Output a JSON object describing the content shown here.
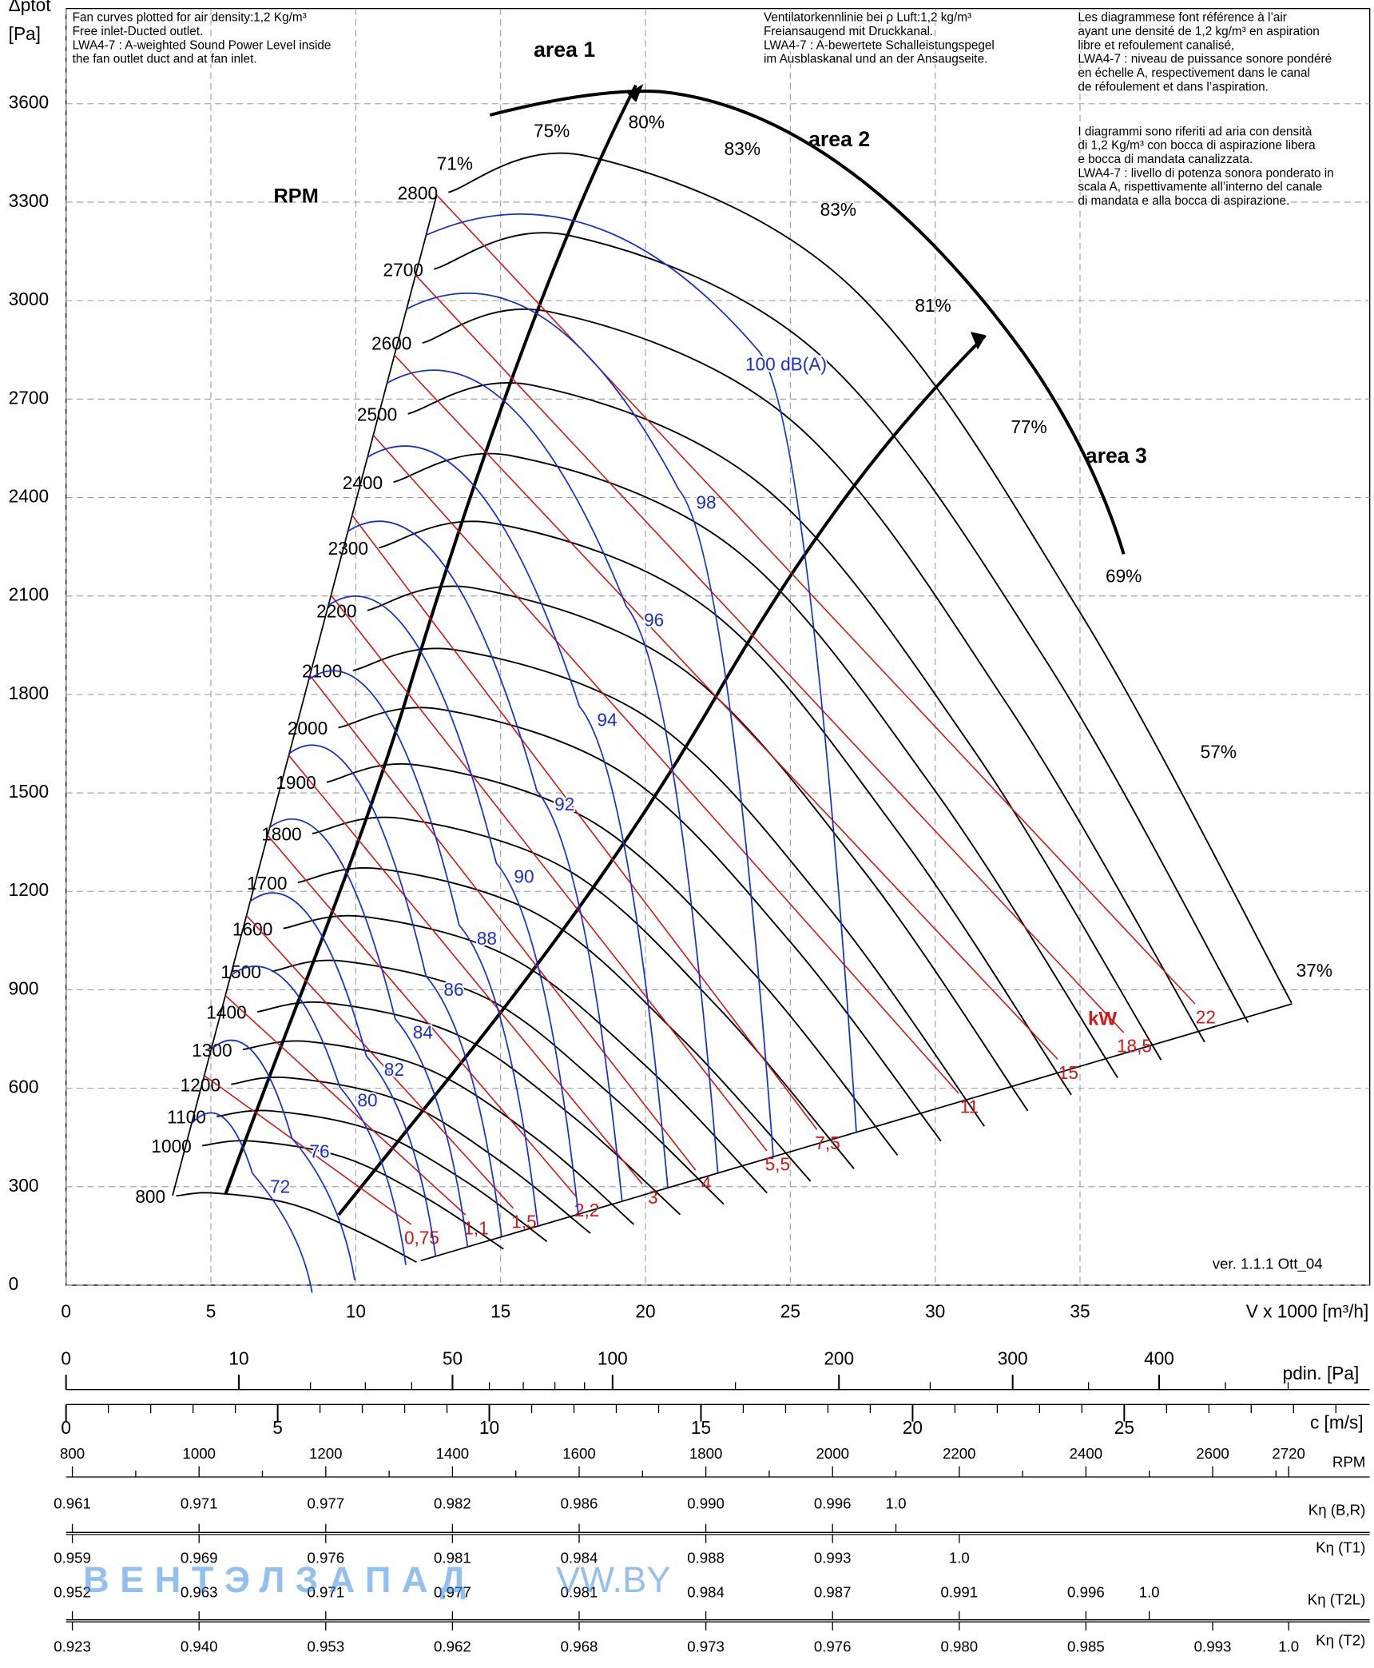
{
  "chart_data": {
    "type": "fan-curve",
    "y_label": "Δptot",
    "y_unit": "[Pa]",
    "x_label": "V x 1000 [m³/h]",
    "xlim": [
      0,
      45
    ],
    "xticks": [
      0,
      5,
      10,
      15,
      20,
      25,
      30,
      35
    ],
    "ylim": [
      0,
      3890
    ],
    "yticks": [
      0,
      300,
      600,
      900,
      1200,
      1500,
      1800,
      2100,
      2400,
      2700,
      3000,
      3300,
      3600
    ],
    "grid": true,
    "rpm_title": "RPM",
    "series": [
      {
        "name": "800",
        "color": "#000000",
        "x": [
          3.8,
          5.1,
          7.7,
          10.0,
          12.1
        ],
        "values": [
          272,
          281,
          249,
          167,
          70
        ]
      },
      {
        "name": "1000",
        "color": "#000000",
        "x": [
          4.7,
          6.4,
          9.6,
          12.5,
          15.1
        ],
        "values": [
          425,
          439,
          389,
          262,
          110
        ]
      },
      {
        "name": "1100",
        "color": "#000000",
        "x": [
          5.2,
          7.1,
          10.6,
          13.8,
          16.6
        ],
        "values": [
          514,
          531,
          471,
          316,
          133
        ]
      },
      {
        "name": "1200",
        "color": "#000000",
        "x": [
          5.7,
          7.7,
          11.6,
          15.0,
          18.1
        ],
        "values": [
          612,
          632,
          560,
          377,
          158
        ]
      },
      {
        "name": "1300",
        "color": "#000000",
        "x": [
          6.1,
          8.4,
          12.5,
          16.3,
          19.6
        ],
        "values": [
          718,
          742,
          658,
          442,
          185
        ]
      },
      {
        "name": "1400",
        "color": "#000000",
        "x": [
          6.6,
          9.0,
          13.5,
          17.5,
          21.2
        ],
        "values": [
          833,
          860,
          763,
          513,
          215
        ]
      },
      {
        "name": "1500",
        "color": "#000000",
        "x": [
          7.1,
          9.6,
          14.5,
          18.7,
          22.7
        ],
        "values": [
          956,
          987,
          875,
          588,
          247
        ]
      },
      {
        "name": "1600",
        "color": "#000000",
        "x": [
          7.5,
          10.3,
          15.4,
          20.0,
          24.2
        ],
        "values": [
          1087,
          1123,
          996,
          669,
          281
        ]
      },
      {
        "name": "1700",
        "color": "#000000",
        "x": [
          8.0,
          10.9,
          16.4,
          21.2,
          25.7
        ],
        "values": [
          1227,
          1268,
          1124,
          756,
          317
        ]
      },
      {
        "name": "1800",
        "color": "#000000",
        "x": [
          8.5,
          11.6,
          17.4,
          22.5,
          27.2
        ],
        "values": [
          1376,
          1422,
          1261,
          847,
          355
        ]
      },
      {
        "name": "1900",
        "color": "#000000",
        "x": [
          9.0,
          12.2,
          18.3,
          23.8,
          28.7
        ],
        "values": [
          1533,
          1584,
          1405,
          944,
          396
        ]
      },
      {
        "name": "2000",
        "color": "#000000",
        "x": [
          9.4,
          12.9,
          19.3,
          25.0,
          30.2
        ],
        "values": [
          1699,
          1755,
          1556,
          1046,
          439
        ]
      },
      {
        "name": "2100",
        "color": "#000000",
        "x": [
          9.9,
          13.5,
          20.3,
          26.3,
          31.7
        ],
        "values": [
          1873,
          1935,
          1716,
          1153,
          484
        ]
      },
      {
        "name": "2200",
        "color": "#000000",
        "x": [
          10.4,
          14.1,
          21.2,
          27.5,
          33.2
        ],
        "values": [
          2056,
          2124,
          1883,
          1266,
          531
        ]
      },
      {
        "name": "2300",
        "color": "#000000",
        "x": [
          10.8,
          14.8,
          22.2,
          28.7,
          34.7
        ],
        "values": [
          2247,
          2321,
          2058,
          1383,
          580
        ]
      },
      {
        "name": "2400",
        "color": "#000000",
        "x": [
          11.3,
          15.4,
          23.1,
          30.0,
          36.3
        ],
        "values": [
          2447,
          2527,
          2241,
          1506,
          632
        ]
      },
      {
        "name": "2500",
        "color": "#000000",
        "x": [
          11.8,
          16.1,
          24.1,
          31.3,
          37.8
        ],
        "values": [
          2655,
          2742,
          2431,
          1634,
          686
        ]
      },
      {
        "name": "2600",
        "color": "#000000",
        "x": [
          12.3,
          16.7,
          25.1,
          32.5,
          39.3
        ],
        "values": [
          2871,
          2966,
          2630,
          1768,
          741
        ]
      },
      {
        "name": "2700",
        "color": "#000000",
        "x": [
          12.7,
          17.4,
          26.0,
          33.8,
          40.8
        ],
        "values": [
          3096,
          3198,
          2836,
          1906,
          800
        ]
      },
      {
        "name": "2800",
        "color": "#000000",
        "x": [
          13.2,
          18.0,
          27.0,
          35.0,
          42.3
        ],
        "values": [
          3330,
          3440,
          3050,
          2050,
          860
        ]
      }
    ],
    "efficiency_labels": [
      "71%",
      "75%",
      "80%",
      "83%",
      "83%",
      "81%",
      "77%",
      "69%",
      "57%",
      "37%"
    ],
    "db_labels": [
      "100 dB(A)",
      "98",
      "96",
      "94",
      "92",
      "90",
      "88",
      "86",
      "84",
      "82",
      "80",
      "76",
      "72"
    ],
    "db_color": "#1a2fc8",
    "kw_title": "kW",
    "kw_labels": [
      "0,75",
      "1,1",
      "1,5",
      "2,2",
      "3",
      "4",
      "5,5",
      "7,5",
      "11",
      "15",
      "18,5",
      "22"
    ],
    "kw_color": "#d01818",
    "area_labels": [
      "area 1",
      "area 2",
      "area 3"
    ],
    "version": "ver. 1.1.1 Ott_04"
  },
  "notes": {
    "en": [
      "Fan curves plotted for air density:1,2 Kg/m³",
      "Free inlet-Ducted outlet.",
      "LWA4-7 : A-weighted Sound Power Level inside",
      "the fan outlet duct and at fan inlet."
    ],
    "de": [
      "Ventilatorkennlinie bei ρ Luft:1,2 kg/m³",
      "Freiansaugend mit Druckkanal.",
      "LWA4-7 : A-bewertete Schalleistungspegel",
      "im Ausblaskanal und an der Ansaugseite."
    ],
    "fr": [
      "Les diagrammese font référence à l’air",
      "ayant une densité de 1,2 kg/m³ en aspiration",
      "libre et refoulement canalisé,",
      "LWA4-7 : niveau de puissance sonore pondéré",
      "en échelle A, respectivement dans le canal",
      "de réfoulement et dans l’aspiration."
    ],
    "it": [
      "I diagrammi sono riferiti ad aria con densità",
      "di 1,2 Kg/m³ con bocca di aspirazione libera",
      "e bocca di mandata canalizzata.",
      "LWA4-7 : livello di potenza sonora ponderato in",
      "scala A, rispettivamente all’interno del canale",
      "di mandata e alla bocca di aspirazione."
    ]
  },
  "scales": {
    "pdin": {
      "label": "pdin. [Pa]",
      "scale": "sqrt",
      "lim": [
        0,
        569
      ],
      "ticks": [
        0,
        10,
        50,
        100,
        200,
        300,
        400
      ],
      "minor_ticks": [
        20,
        30,
        40,
        60,
        70,
        80,
        90,
        150,
        250,
        350,
        450,
        500
      ]
    },
    "c": {
      "label": "c [m/s]",
      "lim": [
        0,
        30.8
      ],
      "ticks": [
        0,
        5,
        10,
        15,
        20,
        25
      ],
      "minor_ticks": [
        1,
        2,
        3,
        4,
        6,
        7,
        8,
        9,
        11,
        12,
        13,
        14,
        16,
        17,
        18,
        19,
        21,
        22,
        23,
        24,
        26,
        27,
        28,
        29,
        30
      ]
    },
    "rpm": {
      "label": "RPM",
      "lim": [
        790,
        2848
      ],
      "ticks": [
        800,
        1000,
        1200,
        1400,
        1600,
        1800,
        2000,
        2200,
        2400,
        2600,
        2720
      ],
      "minor_ticks": [
        900,
        1100,
        1300,
        1500,
        1700,
        1900,
        2100,
        2300,
        2500,
        2700
      ]
    },
    "k_rows": [
      {
        "label": "Kη (B,R)",
        "rpm": [
          800,
          1000,
          1200,
          1400,
          1600,
          1800,
          2000,
          2100
        ],
        "values": [
          "0.961",
          "0.971",
          "0.977",
          "0.982",
          "0.986",
          "0.990",
          "0.996",
          "1.0"
        ]
      },
      {
        "label": "Kη (T1)",
        "rpm": [
          800,
          1000,
          1200,
          1400,
          1600,
          1800,
          2000,
          2200
        ],
        "values": [
          "0.959",
          "0.969",
          "0.976",
          "0.981",
          "0.984",
          "0.988",
          "0.993",
          "1.0"
        ]
      },
      {
        "label": "Kη (T2L)",
        "rpm": [
          800,
          1000,
          1200,
          1400,
          1600,
          1800,
          2000,
          2200,
          2400,
          2500
        ],
        "values": [
          "0.952",
          "0.963",
          "0.971",
          "0.977",
          "0.981",
          "0.984",
          "0.987",
          "0.991",
          "0.996",
          "1.0"
        ]
      },
      {
        "label": "Kη (T2)",
        "rpm": [
          800,
          1000,
          1200,
          1400,
          1600,
          1800,
          2000,
          2200,
          2400,
          2600,
          2720
        ],
        "values": [
          "0.923",
          "0.940",
          "0.953",
          "0.962",
          "0.968",
          "0.973",
          "0.976",
          "0.980",
          "0.985",
          "0.993",
          "1.0"
        ]
      }
    ]
  },
  "watermark": [
    "ВЕНТЭЛЗАПАД",
    "VW.BY"
  ]
}
